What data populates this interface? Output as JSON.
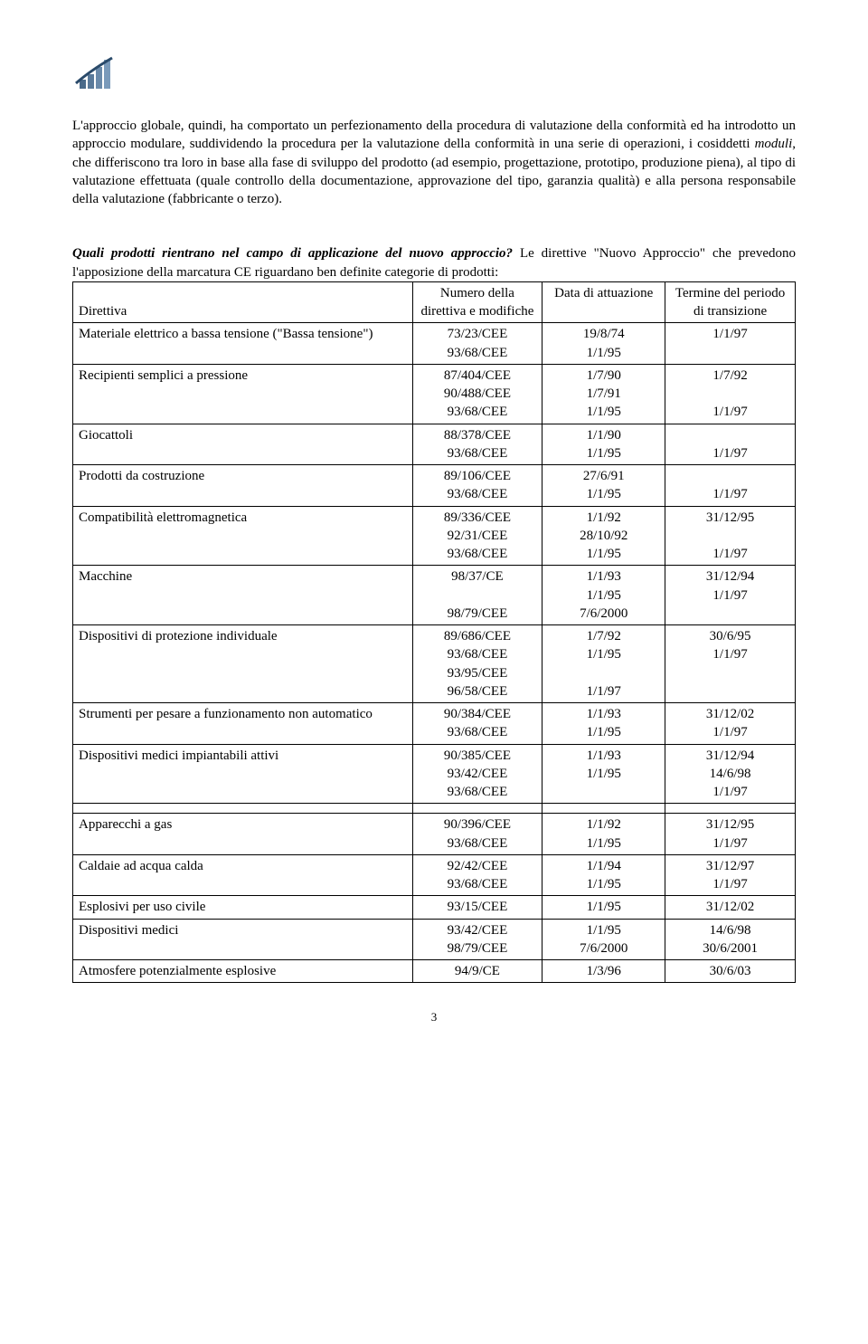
{
  "paragraph1_a": "L'approccio globale, quindi, ha comportato un perfezionamento della procedura di valutazione della conformità ed ha introdotto un approccio modulare, suddividendo la procedura per la valutazione della conformità in una serie di operazioni, i cosiddetti ",
  "paragraph1_i": "moduli",
  "paragraph1_b": ", che differiscono tra loro in base alla fase di sviluppo del prodotto (ad esempio, progettazione, prototipo, produzione piena), al tipo di valutazione effettuata (quale controllo della documentazione, approvazione del tipo, garanzia qualità) e alla persona responsabile della valutazione (fabbricante o terzo).",
  "heading_bi": "Quali prodotti rientrano nel campo di applicazione del nuovo approccio?",
  "heading_rest": " Le direttive \"Nuovo Approccio\" che prevedono l'apposizione della marcatura CE riguardano ben definite categorie di prodotti:",
  "th0": "Direttiva",
  "th1": "Numero della direttiva e modifiche",
  "th2": "Data di attuazione",
  "th3": "Termine del periodo di transizione",
  "rows": [
    {
      "c0": "Materiale elettrico a bassa tensione (\"Bassa tensione\")",
      "c1": "73/23/CEE\n93/68/CEE",
      "c2": "19/8/74\n1/1/95",
      "c3": "1/1/97"
    },
    {
      "c0": "Recipienti semplici a pressione",
      "c1": "87/404/CEE\n90/488/CEE\n93/68/CEE",
      "c2": "1/7/90\n1/7/91\n1/1/95",
      "c3": "1/7/92\n\n1/1/97"
    },
    {
      "c0": "Giocattoli",
      "c1": "88/378/CEE\n93/68/CEE",
      "c2": "1/1/90\n1/1/95",
      "c3": "\n1/1/97"
    },
    {
      "c0": "Prodotti da costruzione",
      "c1": "89/106/CEE\n93/68/CEE",
      "c2": "27/6/91\n1/1/95",
      "c3": "\n1/1/97"
    },
    {
      "c0": "Compatibilità elettromagnetica",
      "c1": "89/336/CEE\n92/31/CEE\n93/68/CEE",
      "c2": "1/1/92\n28/10/92\n1/1/95",
      "c3": "31/12/95\n\n1/1/97"
    },
    {
      "c0": "Macchine",
      "c1": "98/37/CE\n\n98/79/CEE",
      "c2": "1/1/93\n1/1/95\n7/6/2000",
      "c3": "31/12/94\n1/1/97"
    },
    {
      "c0": "Dispositivi di protezione individuale",
      "c1": "89/686/CEE\n93/68/CEE\n93/95/CEE\n96/58/CEE",
      "c2": "1/7/92\n1/1/95\n\n1/1/97",
      "c3": "30/6/95\n1/1/97"
    },
    {
      "c0": "Strumenti per pesare a funzionamento non automatico",
      "c1": "90/384/CEE\n93/68/CEE",
      "c2": "1/1/93\n1/1/95",
      "c3": "31/12/02\n1/1/97"
    },
    {
      "c0": "Dispositivi medici impiantabili attivi",
      "c1": "90/385/CEE\n93/42/CEE\n93/68/CEE",
      "c2": "1/1/93\n1/1/95",
      "c3": "31/12/94\n14/6/98\n1/1/97"
    }
  ],
  "rows2": [
    {
      "c0": "Apparecchi a gas",
      "c1": "90/396/CEE\n93/68/CEE",
      "c2": "1/1/92\n1/1/95",
      "c3": "31/12/95\n1/1/97"
    },
    {
      "c0": "Caldaie ad acqua calda",
      "c1": "92/42/CEE\n93/68/CEE",
      "c2": "1/1/94\n1/1/95",
      "c3": "31/12/97\n1/1/97"
    },
    {
      "c0": "Esplosivi per uso civile",
      "c1": "93/15/CEE",
      "c2": "1/1/95",
      "c3": "31/12/02"
    },
    {
      "c0": "Dispositivi medici",
      "c1": "93/42/CEE\n98/79/CEE",
      "c2": "1/1/95\n7/6/2000",
      "c3": "14/6/98\n30/6/2001"
    },
    {
      "c0": "Atmosfere potenzialmente esplosive",
      "c1": "94/9/CE",
      "c2": "1/3/96",
      "c3": "30/6/03"
    }
  ],
  "page_number": "3"
}
